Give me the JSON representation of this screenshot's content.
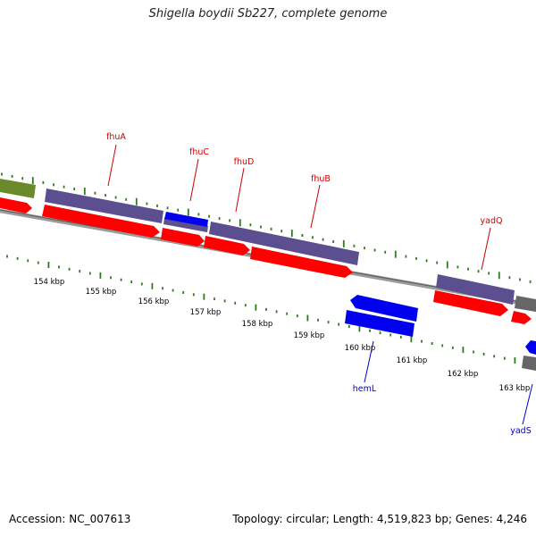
{
  "title": "Shigella boydii Sb227, complete genome",
  "footer": {
    "accession": "Accession: NC_007613",
    "summary": "Topology: circular; Length: 4,519,823 bp; Genes: 4,246"
  },
  "colors": {
    "forward_gene": "#ff0000",
    "forward_cds": "#5b4f8f",
    "reverse_gene": "#0000ee",
    "olive_feature": "#6b8a2a",
    "grey_feature": "#666666",
    "backbone": "#888888",
    "tick_green": "#2f7a1f",
    "forward_label": "#cc0000",
    "reverse_label": "#0000cc"
  },
  "ruler": {
    "unit": "kbp",
    "tick_labels": [
      "154 kbp",
      "155 kbp",
      "156 kbp",
      "157 kbp",
      "158 kbp",
      "159 kbp",
      "160 kbp",
      "161 kbp",
      "162 kbp",
      "163 kbp"
    ]
  },
  "genes_forward": [
    {
      "name": "fhuA"
    },
    {
      "name": "fhuC"
    },
    {
      "name": "fhuD"
    },
    {
      "name": "fhuB"
    },
    {
      "name": "yadQ"
    }
  ],
  "genes_reverse": [
    {
      "name": "hemL"
    },
    {
      "name": "yadS"
    }
  ]
}
